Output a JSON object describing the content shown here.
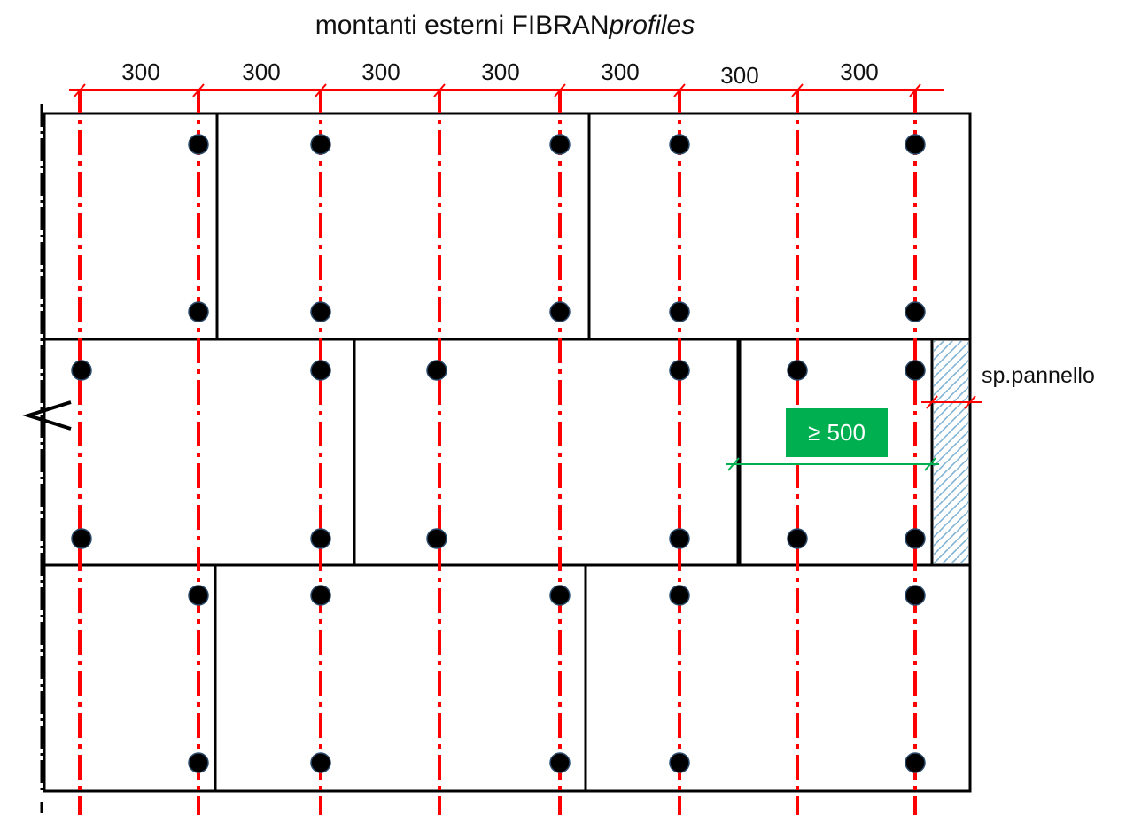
{
  "title": {
    "main": "montanti esterni FIBRAN",
    "italic": "profiles"
  },
  "spacing_labels": [
    "300",
    "300",
    "300",
    "300",
    "300",
    "300",
    "300"
  ],
  "min_width_label": "≥ 500",
  "panel_thickness_label": "sp.pannello",
  "colors": {
    "axis_line": "#ff0000",
    "panel_outline": "#000000",
    "fastener": "#000000",
    "min_width_badge": "#00b050",
    "min_width_line": "#00b050",
    "hatch": "#7fb3d5"
  },
  "icons": [
    "vertical-dash-dot-border",
    "direction-arrow-icon",
    "fastener-dot-icon",
    "hatched-strip"
  ]
}
